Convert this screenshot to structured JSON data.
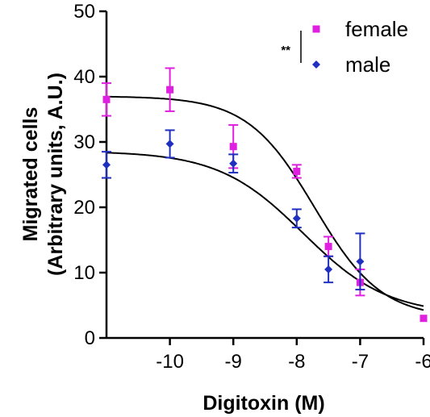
{
  "chart_data": {
    "type": "scatter",
    "title": "",
    "xlabel": "Digitoxin (M)",
    "ylabel_line1": "Migrated cells",
    "ylabel_line2": "(Arbitrary units, A.U.)",
    "xlim": [
      -11,
      -6
    ],
    "ylim": [
      0,
      50
    ],
    "x_ticks": [
      -10,
      -9,
      -8,
      -7,
      -6
    ],
    "x_tick_labels": [
      "-10",
      "-9",
      "-8",
      "-7",
      "-6"
    ],
    "y_ticks": [
      0,
      10,
      20,
      30,
      40,
      50
    ],
    "y_tick_labels": [
      "0",
      "10",
      "20",
      "30",
      "40",
      "50"
    ],
    "grid": false,
    "legend_position": "top-right",
    "significance_label": "**",
    "series": [
      {
        "name": "female",
        "marker": "square",
        "color": "#e020e0",
        "points": [
          {
            "x": -11,
            "y": 36.5,
            "err": 2.5
          },
          {
            "x": -10,
            "y": 38.0,
            "err": 3.3
          },
          {
            "x": -9,
            "y": 29.3,
            "err": 3.3
          },
          {
            "x": -8,
            "y": 25.5,
            "err": 1.0
          },
          {
            "x": -7.5,
            "y": 14.0,
            "err": 1.5
          },
          {
            "x": -7,
            "y": 8.5,
            "err": 2.0
          },
          {
            "x": -6,
            "y": 3.0,
            "err": 0
          }
        ],
        "fit": {
          "top": 37,
          "bottom": 3.0,
          "logEC50": -7.72,
          "hill": -0.82
        }
      },
      {
        "name": "male",
        "marker": "diamond",
        "color": "#1f2fbf",
        "points": [
          {
            "x": -11,
            "y": 26.5,
            "err": 2.0
          },
          {
            "x": -10,
            "y": 29.7,
            "err": 2.1
          },
          {
            "x": -9,
            "y": 26.7,
            "err": 1.4
          },
          {
            "x": -8,
            "y": 18.3,
            "err": 1.4
          },
          {
            "x": -7.5,
            "y": 10.5,
            "err": 2.0
          },
          {
            "x": -7,
            "y": 11.7,
            "err": 4.3
          }
        ],
        "fit": {
          "top": 28.6,
          "bottom": 3.5,
          "logEC50": -7.9,
          "hill": -0.65
        }
      }
    ]
  }
}
